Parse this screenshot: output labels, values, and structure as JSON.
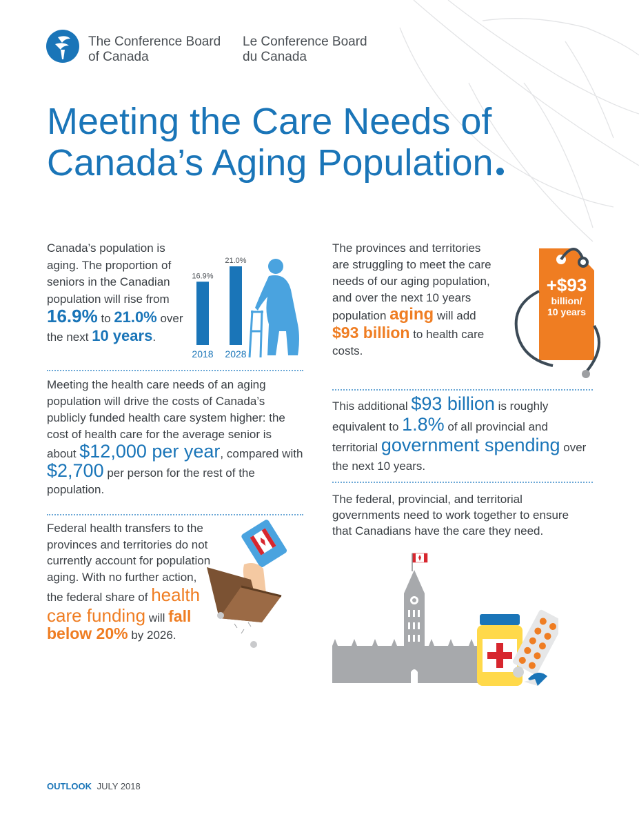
{
  "logo": {
    "org_en_line1": "The Conference Board",
    "org_en_line2": "of Canada",
    "org_fr_line1": "Le Conference Board",
    "org_fr_line2": "du Canada",
    "icon": "torch-icon"
  },
  "title": {
    "line1": "Meeting the Care Needs of",
    "line2": "Canada’s Aging Population"
  },
  "section1": {
    "t1": "Canada’s population is aging. The proportion of seniors in the Canadian population will rise from ",
    "hl1": "16.9%",
    "t2": " to ",
    "hl2": "21.0%",
    "t3": " over the next ",
    "hl3": "10 years",
    "t4": "."
  },
  "chart_data": {
    "type": "bar",
    "categories": [
      "2018",
      "2028"
    ],
    "values": [
      16.9,
      21.0
    ],
    "value_labels": [
      "16.9%",
      "21.0%"
    ],
    "ylim": [
      0,
      21.0
    ],
    "bar_color": "#1a75b8"
  },
  "section2": {
    "t1": "Meeting the health care needs of an aging population will drive the costs of Canada’s publicly funded health care system higher: the cost of health care for the average senior is about ",
    "hl1": "$12,000 per year",
    "t2": ", compared with ",
    "hl2": "$2,700",
    "t3": " per person for the rest of the population."
  },
  "section3": {
    "t1": "Federal health transfers to the provinces and territories do not currently account for population aging. With no further action, the federal share of ",
    "hl1": "health care funding",
    "t2": " will ",
    "hl2": "fall below 20%",
    "t3": " by 2026."
  },
  "section4": {
    "t1": "The provinces and territories are struggling to meet the care needs of our aging population, and over the next 10 years population ",
    "hl1": "aging",
    "t2": " will add ",
    "hl2": "$93 billion",
    "t3": " to health care costs."
  },
  "price_tag": {
    "amount": "+$93",
    "unit_line1": "billion/",
    "unit_line2": "10 years",
    "color": "#ef7d22"
  },
  "section5": {
    "t1": "This additional ",
    "hl1": "$93 billion",
    "t2": " is roughly equivalent to ",
    "hl2": "1.8%",
    "t3": " of all provincial and territorial ",
    "hl3": "government spending",
    "t4": " over the next 10 years."
  },
  "section6": {
    "text": "The federal, provincial, and territorial governments need to work together to ensure that Canadians have the care they need."
  },
  "footer": {
    "label": "OUTLOOK",
    "date": "JULY 2018"
  },
  "colors": {
    "blue": "#1a75b8",
    "orange": "#ef7d22",
    "gray": "#a7a9ac"
  }
}
